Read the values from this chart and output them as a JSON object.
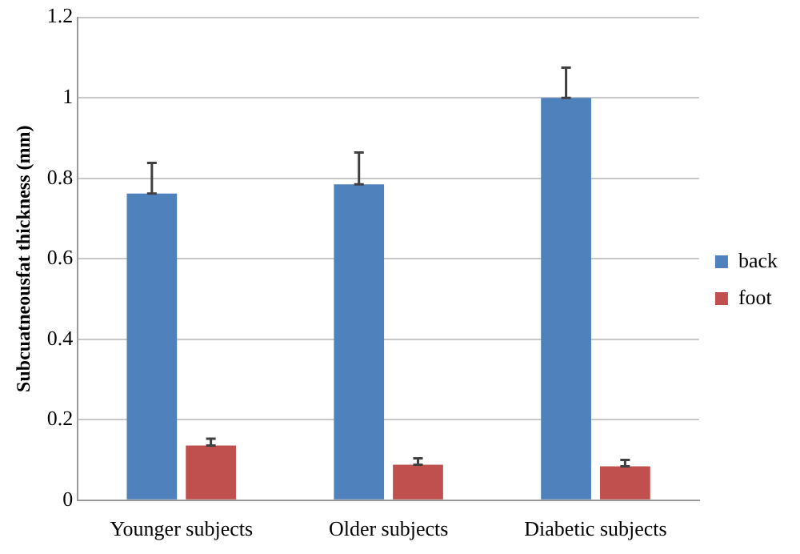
{
  "chart_data": {
    "type": "bar",
    "ylabel": "Subcuatneousfat thickness (mm)",
    "categories": [
      "Younger subjects",
      "Older subjects",
      "Diabetic subjects"
    ],
    "series": [
      {
        "name": "back",
        "color": "#4f81bd",
        "values": [
          0.762,
          0.785,
          1.0
        ],
        "errors": [
          [
            0.762,
            0.838
          ],
          [
            0.785,
            0.864
          ],
          [
            1.0,
            1.075
          ]
        ]
      },
      {
        "name": "foot",
        "color": "#c0504d",
        "values": [
          0.136,
          0.088,
          0.084
        ],
        "errors": [
          [
            0.136,
            0.153
          ],
          [
            0.088,
            0.104
          ],
          [
            0.084,
            0.1
          ]
        ]
      }
    ],
    "ylim": [
      0,
      1.2
    ],
    "yticks": [
      0,
      0.2,
      0.4,
      0.6,
      0.8,
      1,
      1.2
    ],
    "grid": "y",
    "legend": "right"
  }
}
